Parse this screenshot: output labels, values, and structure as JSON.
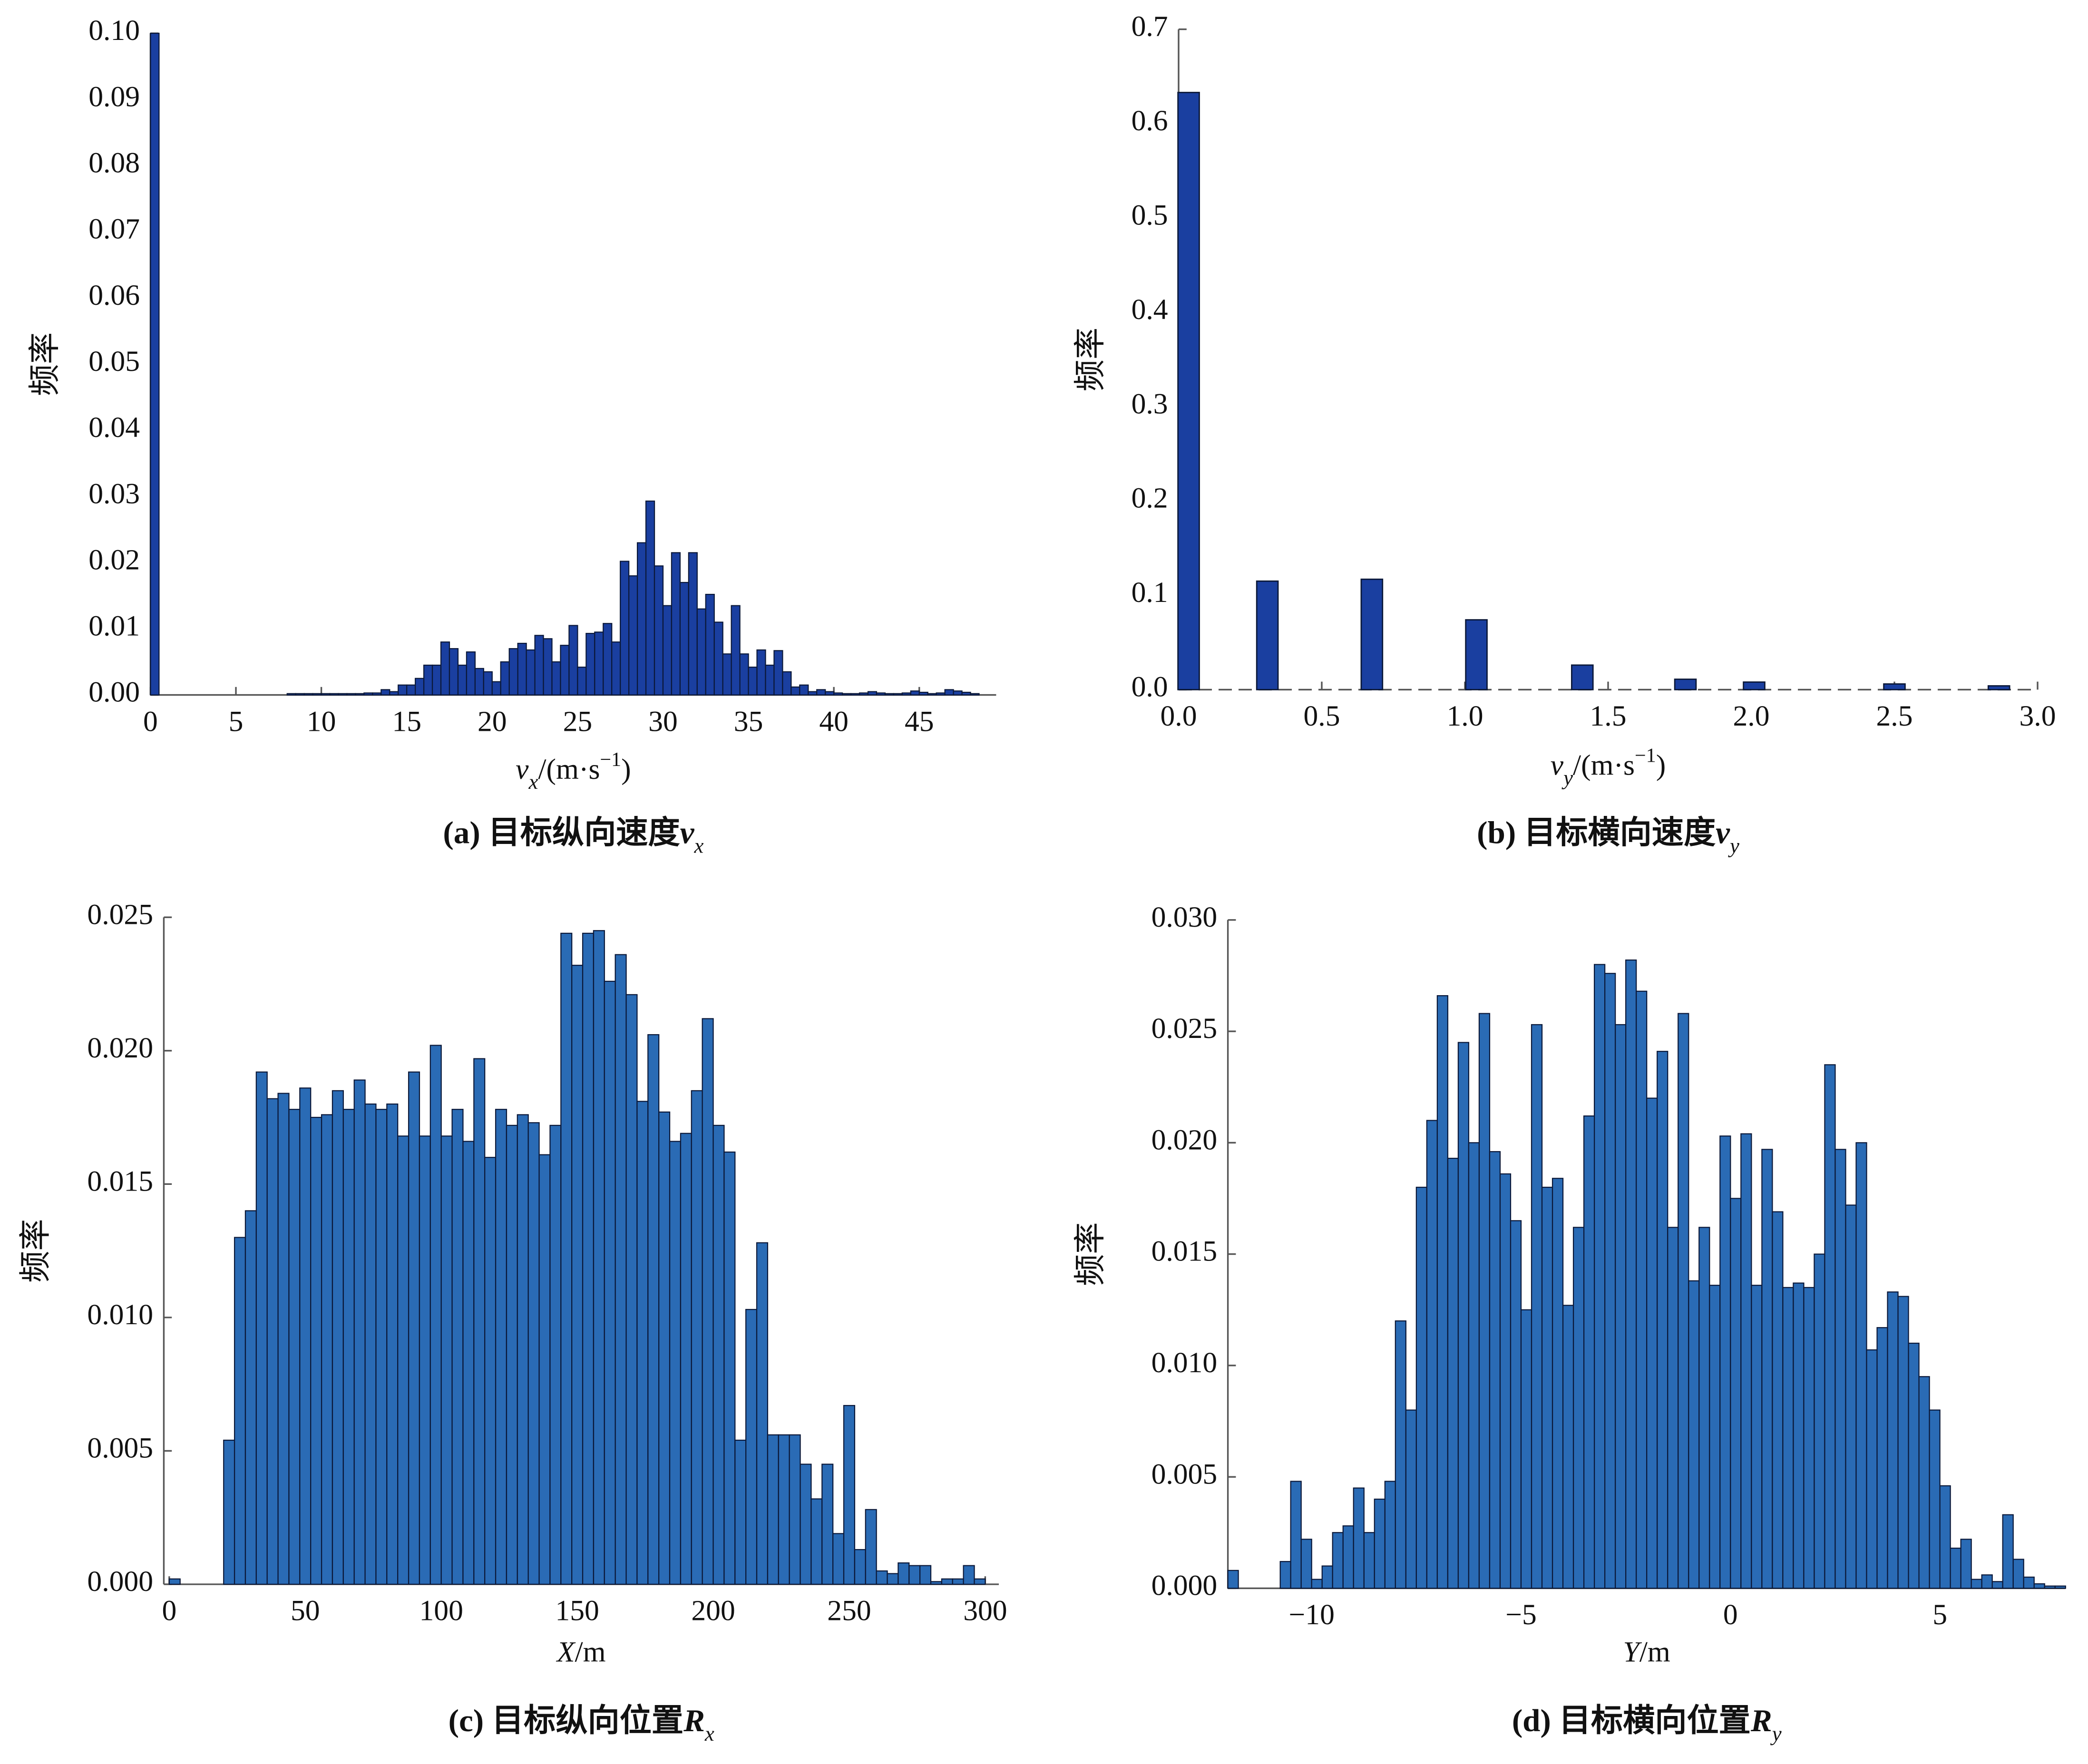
{
  "chart_data": [
    {
      "type": "histogram",
      "color": "#1a3fa0",
      "caption": [
        {
          "text": "(a) 目标纵向速度",
          "style": "normal"
        },
        {
          "text": "v",
          "style": "italic"
        },
        {
          "text": "x",
          "style": "sub"
        }
      ],
      "xlabel": [
        {
          "text": "v",
          "style": "italic"
        },
        {
          "text": "x",
          "style": "sub"
        },
        {
          "text": "/(m·s",
          "style": "normal"
        },
        {
          "text": "−1",
          "style": "sup"
        },
        {
          "text": ")",
          "style": "normal"
        }
      ],
      "ylabel": "频率",
      "xlim": [
        0,
        49.5
      ],
      "ylim": [
        0,
        0.1
      ],
      "xticks": [
        0,
        5,
        10,
        15,
        20,
        25,
        30,
        35,
        40,
        45
      ],
      "yticks": [
        {
          "value": 0,
          "label": "0.00"
        },
        0.01,
        0.02,
        0.03,
        0.04,
        0.05,
        0.06,
        0.07,
        0.08,
        0.09,
        {
          "value": 0.1,
          "label": "0.10"
        }
      ],
      "bins": [
        0,
        0.5,
        1,
        1.5,
        2,
        2.5,
        3,
        3.5,
        4,
        4.5,
        5,
        5.5,
        6,
        6.5,
        7,
        7.5,
        8,
        8.5,
        9,
        9.5,
        10,
        10.5,
        11,
        11.5,
        12,
        12.5,
        13,
        13.5,
        14,
        14.5,
        15,
        15.5,
        16,
        16.5,
        17,
        17.5,
        18,
        18.5,
        19,
        19.5,
        20,
        20.5,
        21,
        21.5,
        22,
        22.5,
        23,
        23.5,
        24,
        24.5,
        25,
        25.5,
        26,
        26.5,
        27,
        27.5,
        28,
        28.5,
        29,
        29.5,
        30,
        30.5,
        31,
        31.5,
        32,
        32.5,
        33,
        33.5,
        34,
        34.5,
        35,
        35.5,
        36,
        36.5,
        37,
        37.5,
        38,
        38.5,
        39,
        39.5,
        40,
        40.5,
        41,
        41.5,
        42,
        42.5,
        43,
        43.5,
        44,
        44.5,
        45,
        45.5,
        46,
        46.5,
        47,
        47.5,
        48,
        48.5
      ],
      "values": [
        0.1,
        0,
        0,
        0,
        0,
        0,
        0,
        0,
        0,
        0,
        0,
        0,
        0,
        0,
        0,
        0,
        0.0002,
        0.0002,
        0.0002,
        0.0002,
        0.0002,
        0.0002,
        0.0002,
        0.0002,
        0.0002,
        0.0003,
        0.0003,
        0.0008,
        0.0005,
        0.0015,
        0.0015,
        0.0025,
        0.0045,
        0.0045,
        0.008,
        0.007,
        0.0045,
        0.0065,
        0.004,
        0.0035,
        0.002,
        0.005,
        0.007,
        0.0078,
        0.0068,
        0.009,
        0.0085,
        0.005,
        0.0075,
        0.0105,
        0.0042,
        0.0093,
        0.0095,
        0.0108,
        0.008,
        0.0202,
        0.018,
        0.023,
        0.0293,
        0.0195,
        0.0135,
        0.0215,
        0.017,
        0.0215,
        0.013,
        0.0152,
        0.011,
        0.0062,
        0.0135,
        0.0062,
        0.0042,
        0.0068,
        0.0045,
        0.0067,
        0.0035,
        0.0012,
        0.0015,
        0.0005,
        0.0008,
        0.0005,
        0.0003,
        0.0002,
        0.0002,
        0.0003,
        0.0005,
        0.0003,
        0.0002,
        0.0002,
        0.0003,
        0.0006,
        0.0004,
        0.0002,
        0.0003,
        0.0008,
        0.0006,
        0.0004,
        0.0002
      ]
    },
    {
      "type": "bar",
      "color": "#1a3fa0",
      "caption": [
        {
          "text": "(b) 目标横向速度",
          "style": "normal"
        },
        {
          "text": "v",
          "style": "italic"
        },
        {
          "text": "y",
          "style": "sub"
        }
      ],
      "xlabel": [
        {
          "text": "v",
          "style": "italic"
        },
        {
          "text": "y",
          "style": "sub"
        },
        {
          "text": "/(m·s",
          "style": "normal"
        },
        {
          "text": "−1",
          "style": "sup"
        },
        {
          "text": ")",
          "style": "normal"
        }
      ],
      "ylabel": "频率",
      "xlim": [
        0,
        3.0
      ],
      "ylim": [
        0,
        0.7
      ],
      "xticks": [
        {
          "value": 0,
          "label": "0.0"
        },
        0.5,
        {
          "value": 1,
          "label": "1.0"
        },
        1.5,
        {
          "value": 2,
          "label": "2.0"
        },
        2.5,
        {
          "value": 3,
          "label": "3.0"
        }
      ],
      "yticks": [
        {
          "value": 0,
          "label": "0.0"
        },
        0.1,
        0.2,
        0.3,
        0.4,
        0.5,
        0.6,
        0.7
      ],
      "x": [
        0.035,
        0.31,
        0.675,
        1.04,
        1.41,
        1.77,
        2.01,
        2.5,
        2.865
      ],
      "values": [
        0.633,
        0.115,
        0.117,
        0.074,
        0.026,
        0.011,
        0.008,
        0.006,
        0.004
      ]
    },
    {
      "type": "histogram",
      "color": "#2a6bb5",
      "caption": [
        {
          "text": "(c) 目标纵向位置",
          "style": "normal"
        },
        {
          "text": "R",
          "style": "italic"
        },
        {
          "text": "x",
          "style": "sub"
        }
      ],
      "xlabel": [
        {
          "text": "X",
          "style": "italic"
        },
        {
          "text": "/m",
          "style": "normal"
        }
      ],
      "ylabel": "频率",
      "xlim": [
        -2,
        305
      ],
      "ylim": [
        0,
        0.025
      ],
      "xticks": [
        0,
        50,
        100,
        150,
        200,
        250,
        300
      ],
      "yticks": [
        {
          "value": 0,
          "label": "0.000"
        },
        0.005,
        {
          "value": 0.01,
          "label": "0.010"
        },
        0.015,
        {
          "value": 0.02,
          "label": "0.020"
        },
        0.025
      ],
      "bins": [
        0,
        4,
        8,
        12,
        16,
        20,
        24,
        28,
        32,
        36,
        40,
        44,
        48,
        52,
        56,
        60,
        64,
        68,
        72,
        76,
        80,
        84,
        88,
        92,
        96,
        100,
        104,
        108,
        112,
        116,
        120,
        124,
        128,
        132,
        136,
        140,
        144,
        148,
        152,
        156,
        160,
        164,
        168,
        172,
        176,
        180,
        184,
        188,
        192,
        196,
        200,
        204,
        208,
        212,
        216,
        220,
        224,
        228,
        232,
        236,
        240,
        244,
        248,
        252,
        256,
        260,
        264,
        268,
        272,
        276,
        280,
        284,
        288,
        292,
        296,
        300
      ],
      "values": [
        0.0002,
        0,
        0,
        0,
        0,
        0.0054,
        0.013,
        0.014,
        0.0192,
        0.0182,
        0.0184,
        0.0178,
        0.0186,
        0.0175,
        0.0176,
        0.0185,
        0.0178,
        0.0189,
        0.018,
        0.0178,
        0.018,
        0.0168,
        0.0192,
        0.0168,
        0.0202,
        0.0168,
        0.0178,
        0.0166,
        0.0197,
        0.016,
        0.0178,
        0.0172,
        0.0176,
        0.0173,
        0.0161,
        0.0172,
        0.0244,
        0.0232,
        0.0244,
        0.0245,
        0.0226,
        0.0236,
        0.0221,
        0.0181,
        0.0206,
        0.0177,
        0.0166,
        0.0169,
        0.0185,
        0.0212,
        0.0172,
        0.0162,
        0.0054,
        0.0103,
        0.0128,
        0.0056,
        0.0056,
        0.0056,
        0.0045,
        0.0032,
        0.0045,
        0.0019,
        0.0067,
        0.0013,
        0.0028,
        0.0005,
        0.0004,
        0.0008,
        0.0007,
        0.0007,
        0.0001,
        0.0002,
        0.0002,
        0.0007,
        0.0002
      ]
    },
    {
      "type": "histogram",
      "color": "#2a6bb5",
      "caption": [
        {
          "text": "(d) 目标横向位置",
          "style": "normal"
        },
        {
          "text": "R",
          "style": "italic"
        },
        {
          "text": "y",
          "style": "sub"
        }
      ],
      "xlabel": [
        {
          "text": "Y",
          "style": "italic"
        },
        {
          "text": "/m",
          "style": "normal"
        }
      ],
      "ylabel": "频率",
      "xlim": [
        -12,
        8
      ],
      "ylim": [
        0,
        0.03
      ],
      "xticks": [
        {
          "value": -10,
          "label": "−10"
        },
        {
          "value": -5,
          "label": "−5"
        },
        0,
        5
      ],
      "yticks": [
        {
          "value": 0,
          "label": "0.000"
        },
        0.005,
        {
          "value": 0.01,
          "label": "0.010"
        },
        0.015,
        {
          "value": 0.02,
          "label": "0.020"
        },
        0.025,
        {
          "value": 0.03,
          "label": "0.030"
        }
      ],
      "bins": [
        -12,
        -11.75,
        -11.5,
        -11.25,
        -11,
        -10.75,
        -10.5,
        -10.25,
        -10,
        -9.75,
        -9.5,
        -9.25,
        -9,
        -8.75,
        -8.5,
        -8.25,
        -8,
        -7.75,
        -7.5,
        -7.25,
        -7,
        -6.75,
        -6.5,
        -6.25,
        -6,
        -5.75,
        -5.5,
        -5.25,
        -5,
        -4.75,
        -4.5,
        -4.25,
        -4,
        -3.75,
        -3.5,
        -3.25,
        -3,
        -2.75,
        -2.5,
        -2.25,
        -2,
        -1.75,
        -1.5,
        -1.25,
        -1,
        -0.75,
        -0.5,
        -0.25,
        0,
        0.25,
        0.5,
        0.75,
        1,
        1.25,
        1.5,
        1.75,
        2,
        2.25,
        2.5,
        2.75,
        3,
        3.25,
        3.5,
        3.75,
        4,
        4.25,
        4.5,
        4.75,
        5,
        5.25,
        5.5,
        5.75,
        6,
        6.25,
        6.5,
        6.75,
        7,
        7.25,
        7.5,
        7.75,
        8
      ],
      "values": [
        0.0008,
        0,
        0,
        0,
        0,
        0.0012,
        0.0048,
        0.0022,
        0.0004,
        0.001,
        0.0025,
        0.0028,
        0.0045,
        0.0025,
        0.004,
        0.0048,
        0.012,
        0.008,
        0.018,
        0.021,
        0.0266,
        0.0193,
        0.0245,
        0.02,
        0.0258,
        0.0196,
        0.0186,
        0.0165,
        0.0125,
        0.0253,
        0.018,
        0.0184,
        0.0127,
        0.0162,
        0.0212,
        0.028,
        0.0276,
        0.0253,
        0.0282,
        0.0268,
        0.022,
        0.0241,
        0.0162,
        0.0258,
        0.0138,
        0.0162,
        0.0136,
        0.0203,
        0.0175,
        0.0204,
        0.0136,
        0.0197,
        0.0169,
        0.0135,
        0.0137,
        0.0135,
        0.015,
        0.0235,
        0.0197,
        0.0172,
        0.02,
        0.0107,
        0.0117,
        0.0133,
        0.0131,
        0.011,
        0.0095,
        0.008,
        0.0046,
        0.0018,
        0.0022,
        0.0004,
        0.0006,
        0.0003,
        0.0033,
        0.0013,
        0.0005,
        0.0002,
        0.0001,
        0.0001
      ]
    }
  ]
}
